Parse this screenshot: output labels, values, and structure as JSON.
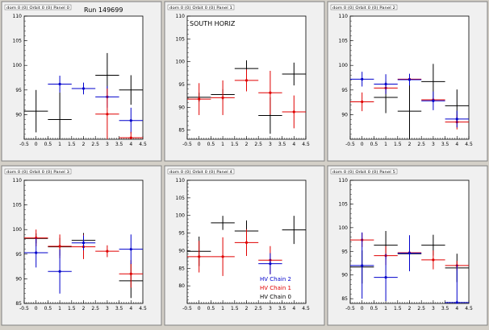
{
  "window": {
    "background": "#d4d0c8",
    "pad_background": "#f0f0f0",
    "frame_background": "#ffffff"
  },
  "colors": {
    "black": "#000000",
    "red": "#e00000",
    "blue": "#0000cc"
  },
  "chart_data": [
    {
      "type": "scatter",
      "title": "dom 0 (0) Orbit 0 (0) Panel 0",
      "annotation": "Run 149699",
      "xlim": [
        -0.5,
        4.5
      ],
      "ylim": [
        85,
        110
      ],
      "xticks": [
        -0.5,
        0,
        0.5,
        1,
        1.5,
        2,
        2.5,
        3,
        3.5,
        4,
        4.5
      ],
      "xtick_labels": [
        "-0.5",
        "0",
        "0.5",
        "1",
        "1.5",
        "2",
        "2.5",
        "3",
        "3.5",
        "4",
        "4.5"
      ],
      "yticks": [
        90,
        95,
        100,
        105,
        110
      ],
      "ytick_labels": [
        "90",
        "95",
        "100",
        "105",
        "110"
      ],
      "series": [
        {
          "color": "black",
          "points": [
            {
              "x": 0,
              "y": 90.7,
              "ex": 0.5,
              "ey": 4.3
            },
            {
              "x": 1,
              "y": 89,
              "ex": 0.5,
              "ey": 5.5
            },
            {
              "x": 3,
              "y": 98,
              "ex": 0.5,
              "ey": 4.5
            },
            {
              "x": 4,
              "y": 95,
              "ex": 0.5,
              "ey": 3
            }
          ]
        },
        {
          "color": "blue",
          "points": [
            {
              "x": 1,
              "y": 96.2,
              "ex": 0.5,
              "ey": 1.7
            },
            {
              "x": 2,
              "y": 95.3,
              "ex": 0.5,
              "ey": 1.2
            },
            {
              "x": 3,
              "y": 93.6,
              "ex": 0.5,
              "ey": 2.2
            },
            {
              "x": 4,
              "y": 88.8,
              "ex": 0.5,
              "ey": 2.6
            }
          ]
        },
        {
          "color": "red",
          "points": [
            {
              "x": 3,
              "y": 90.1,
              "ex": 0.5,
              "ey": 5.2
            },
            {
              "x": 4,
              "y": 85.3,
              "ex": 0.5,
              "ey": 1.2
            }
          ]
        }
      ]
    },
    {
      "type": "scatter",
      "title": "dom 0 (0) Orbit 0 (0) Panel 1",
      "annotation": "SOUTH HORIZ",
      "xlim": [
        -0.5,
        4.5
      ],
      "ylim": [
        83,
        110
      ],
      "xticks": [
        -0.5,
        0,
        0.5,
        1,
        1.5,
        2,
        2.5,
        3,
        3.5,
        4,
        4.5
      ],
      "xtick_labels": [
        "-0.5",
        "0",
        "0.5",
        "1",
        "1.5",
        "2",
        "2.5",
        "3",
        "3.5",
        "4",
        "4.5"
      ],
      "yticks": [
        85,
        90,
        95,
        100,
        105,
        110
      ],
      "ytick_labels": [
        "85",
        "90",
        "95",
        "100",
        "105",
        "110"
      ],
      "series": [
        {
          "color": "black",
          "points": [
            {
              "x": 0,
              "y": 92.2,
              "ex": 0.5,
              "ey": 1
            },
            {
              "x": 1,
              "y": 92.8,
              "ex": 0.5,
              "ey": 1.2
            },
            {
              "x": 2,
              "y": 98.5,
              "ex": 0.5,
              "ey": 1.8
            },
            {
              "x": 3,
              "y": 88.2,
              "ex": 0.5,
              "ey": 4
            },
            {
              "x": 4,
              "y": 97.3,
              "ex": 0.5,
              "ey": 2.5
            }
          ]
        },
        {
          "color": "red",
          "points": [
            {
              "x": 0,
              "y": 91.8,
              "ex": 0.5,
              "ey": 3.5
            },
            {
              "x": 1,
              "y": 92.1,
              "ex": 0.5,
              "ey": 3.8
            },
            {
              "x": 2,
              "y": 95.9,
              "ex": 0.5,
              "ey": 2.4
            },
            {
              "x": 3,
              "y": 93.2,
              "ex": 0.5,
              "ey": 4.8
            },
            {
              "x": 4,
              "y": 89,
              "ex": 0.5,
              "ey": 3.6
            }
          ]
        }
      ]
    },
    {
      "type": "scatter",
      "title": "dom 0 (0) Orbit 0 (0) Panel 2",
      "annotation": "",
      "xlim": [
        -0.5,
        4.5
      ],
      "ylim": [
        85,
        110
      ],
      "xticks": [
        -0.5,
        0,
        0.5,
        1,
        1.5,
        2,
        2.5,
        3,
        3.5,
        4,
        4.5
      ],
      "xtick_labels": [
        "-0.5",
        "0",
        "0.5",
        "1",
        "1.5",
        "2",
        "2.5",
        "3",
        "3.5",
        "4",
        "4.5"
      ],
      "yticks": [
        90,
        95,
        100,
        105,
        110
      ],
      "ytick_labels": [
        "90",
        "95",
        "100",
        "105",
        "110"
      ],
      "series": [
        {
          "color": "black",
          "points": [
            {
              "x": 1,
              "y": 93.5,
              "ex": 0.5,
              "ey": 3.2
            },
            {
              "x": 2,
              "y": 90.7,
              "ex": 0.5,
              "ey": 6
            },
            {
              "x": 3,
              "y": 96.7,
              "ex": 0.5,
              "ey": 3.6
            },
            {
              "x": 4,
              "y": 91.8,
              "ex": 0.5,
              "ey": 3.3
            }
          ]
        },
        {
          "color": "red",
          "points": [
            {
              "x": 0,
              "y": 92.6,
              "ex": 0.5,
              "ey": 1.9
            },
            {
              "x": 1,
              "y": 95.4,
              "ex": 0.5,
              "ey": 1.1
            },
            {
              "x": 2,
              "y": 97.2,
              "ex": 0.5,
              "ey": 0.5
            },
            {
              "x": 3,
              "y": 93,
              "ex": 0.5,
              "ey": 0.4
            },
            {
              "x": 4,
              "y": 88.5,
              "ex": 0.5,
              "ey": 1.5
            }
          ]
        },
        {
          "color": "blue",
          "points": [
            {
              "x": 0,
              "y": 97.2,
              "ex": 0.5,
              "ey": 1.5
            },
            {
              "x": 1,
              "y": 96.2,
              "ex": 0.5,
              "ey": 2
            },
            {
              "x": 2,
              "y": 97.1,
              "ex": 0.5,
              "ey": 1.2
            },
            {
              "x": 3,
              "y": 92.8,
              "ex": 0.5,
              "ey": 1.9
            },
            {
              "x": 4,
              "y": 89.1,
              "ex": 0.5,
              "ey": 1.7
            }
          ]
        }
      ]
    },
    {
      "type": "scatter",
      "title": "dom 0 (0) Orbit 0 (0) Panel 3",
      "annotation": "",
      "xlim": [
        -0.5,
        4.5
      ],
      "ylim": [
        85,
        110
      ],
      "xticks": [
        -0.5,
        0,
        0.5,
        1,
        1.5,
        2,
        2.5,
        3,
        3.5,
        4,
        4.5
      ],
      "xtick_labels": [
        "-0.5",
        "0",
        "0.5",
        "1",
        "1.5",
        "2",
        "2.5",
        "3",
        "3.5",
        "4",
        "4.5"
      ],
      "yticks": [
        85,
        90,
        95,
        100,
        105,
        110
      ],
      "ytick_labels": [
        "85",
        "90",
        "95",
        "100",
        "105",
        "110"
      ],
      "series": [
        {
          "color": "black",
          "points": [
            {
              "x": 0,
              "y": 98.2,
              "ex": 0.5,
              "ey": 1
            },
            {
              "x": 1,
              "y": 96.5,
              "ex": 0.5,
              "ey": 1.8
            },
            {
              "x": 2,
              "y": 97.8,
              "ex": 0.5,
              "ey": 1.5
            },
            {
              "x": 4,
              "y": 89.6,
              "ex": 0.5,
              "ey": 3.5
            }
          ]
        },
        {
          "color": "red",
          "points": [
            {
              "x": 0,
              "y": 98.3,
              "ex": 0.5,
              "ey": 1.7
            },
            {
              "x": 1,
              "y": 96.6,
              "ex": 0.5,
              "ey": 2.4
            },
            {
              "x": 2,
              "y": 96.5,
              "ex": 0.5,
              "ey": 2.5
            },
            {
              "x": 3,
              "y": 95.6,
              "ex": 0.5,
              "ey": 1.2
            },
            {
              "x": 4,
              "y": 91,
              "ex": 0.5,
              "ey": 2.8
            }
          ]
        },
        {
          "color": "blue",
          "points": [
            {
              "x": 0,
              "y": 95.3,
              "ex": 0.5,
              "ey": 3
            },
            {
              "x": 1,
              "y": 91.5,
              "ex": 0.5,
              "ey": 4.5
            },
            {
              "x": 2,
              "y": 97.3,
              "ex": 0.5,
              "ey": 1.5
            },
            {
              "x": 4,
              "y": 96,
              "ex": 0.5,
              "ey": 3
            }
          ]
        }
      ]
    },
    {
      "type": "scatter",
      "title": "dom 0 (0) Orbit 0 (0) Panel 4",
      "annotation": "",
      "xlim": [
        -0.5,
        4.5
      ],
      "ylim": [
        75,
        110
      ],
      "xticks": [
        -0.5,
        0,
        0.5,
        1,
        1.5,
        2,
        2.5,
        3,
        3.5,
        4,
        4.5
      ],
      "xtick_labels": [
        "-0.5",
        "0",
        "0.5",
        "1",
        "1.5",
        "2",
        "2.5",
        "3",
        "3.5",
        "4",
        "4.5"
      ],
      "yticks": [
        80,
        85,
        90,
        95,
        100,
        105,
        110
      ],
      "ytick_labels": [
        "80",
        "85",
        "90",
        "95",
        "100",
        "105",
        "110"
      ],
      "legend": {
        "position": "bottom-right",
        "entries": [
          {
            "label": "HV Chain 2",
            "color": "blue"
          },
          {
            "label": "HV Chain 1",
            "color": "red"
          },
          {
            "label": "HV Chain 0",
            "color": "black"
          }
        ]
      },
      "series": [
        {
          "color": "black",
          "points": [
            {
              "x": 0,
              "y": 89.8,
              "ex": 0.5,
              "ey": 4.2
            },
            {
              "x": 1,
              "y": 97.9,
              "ex": 0.5,
              "ey": 2
            },
            {
              "x": 2,
              "y": 95.6,
              "ex": 0.5,
              "ey": 3
            },
            {
              "x": 4,
              "y": 95.9,
              "ex": 0.5,
              "ey": 4
            }
          ]
        },
        {
          "color": "red",
          "points": [
            {
              "x": 0,
              "y": 88.3,
              "ex": 0.5,
              "ey": 4.5
            },
            {
              "x": 1,
              "y": 88.3,
              "ex": 0.5,
              "ey": 5.5
            },
            {
              "x": 2,
              "y": 92.3,
              "ex": 0.5,
              "ey": 3.8
            },
            {
              "x": 3,
              "y": 87.3,
              "ex": 0.5,
              "ey": 4
            }
          ]
        },
        {
          "color": "blue",
          "points": [
            {
              "x": 3,
              "y": 86.3,
              "ex": 0.5,
              "ey": 3
            }
          ]
        }
      ]
    },
    {
      "type": "scatter",
      "title": "dom 0 (0) Orbit 0 (0) Panel 5",
      "annotation": "",
      "xlim": [
        -0.5,
        4.5
      ],
      "ylim": [
        84,
        110
      ],
      "xticks": [
        -0.5,
        0,
        0.5,
        1,
        1.5,
        2,
        2.5,
        3,
        3.5,
        4,
        4.5
      ],
      "xtick_labels": [
        "-0.5",
        "0",
        "0.5",
        "1",
        "1.5",
        "2",
        "2.5",
        "3",
        "3.5",
        "4",
        "4.5"
      ],
      "yticks": [
        85,
        90,
        95,
        100,
        105,
        110
      ],
      "ytick_labels": [
        "85",
        "90",
        "95",
        "100",
        "105",
        "110"
      ],
      "series": [
        {
          "color": "black",
          "points": [
            {
              "x": 0,
              "y": 91.7,
              "ex": 0.5,
              "ey": 3.5
            },
            {
              "x": 1,
              "y": 96.3,
              "ex": 0.5,
              "ey": 3
            },
            {
              "x": 2,
              "y": 94.5,
              "ex": 0.5,
              "ey": 1.5
            },
            {
              "x": 3,
              "y": 96.3,
              "ex": 0.5,
              "ey": 2.2
            },
            {
              "x": 4,
              "y": 91.5,
              "ex": 0.5,
              "ey": 3
            }
          ]
        },
        {
          "color": "red",
          "points": [
            {
              "x": 0,
              "y": 97.4,
              "ex": 0.5,
              "ey": 1.5
            },
            {
              "x": 1,
              "y": 94.1,
              "ex": 0.5,
              "ey": 2
            },
            {
              "x": 2,
              "y": 94.7,
              "ex": 0.5,
              "ey": 1.5
            },
            {
              "x": 3,
              "y": 93.2,
              "ex": 0.5,
              "ey": 2
            },
            {
              "x": 4,
              "y": 92,
              "ex": 0.5,
              "ey": 1
            }
          ]
        },
        {
          "color": "blue",
          "points": [
            {
              "x": 0,
              "y": 92,
              "ex": 0.5,
              "ey": 7
            },
            {
              "x": 1,
              "y": 89.5,
              "ex": 0.5,
              "ey": 5
            },
            {
              "x": 2,
              "y": 94.6,
              "ex": 0.5,
              "ey": 3.8
            },
            {
              "x": 4,
              "y": 84.2,
              "ex": 0.5,
              "ey": 8
            }
          ]
        }
      ]
    }
  ]
}
